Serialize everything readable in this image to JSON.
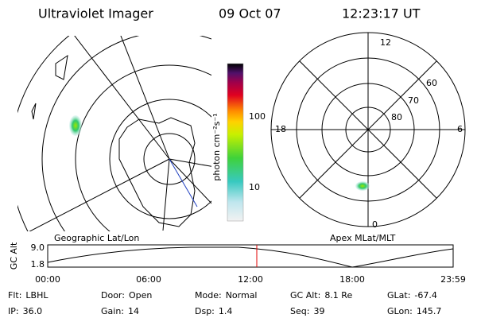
{
  "header": {
    "instrument": "Ultraviolet Imager",
    "date": "09 Oct 07",
    "time": "12:23:17 UT"
  },
  "polar_panel": {
    "mlt_labels": [
      "12",
      "18",
      "6",
      "0"
    ],
    "lat_labels": [
      "80",
      "70",
      "60"
    ]
  },
  "colorbar": {
    "unit_label": "photon cm⁻²s⁻¹",
    "ticks": [
      "100",
      "10"
    ]
  },
  "altitude_plot": {
    "left_label": "Geographic Lat/Lon",
    "right_label": "Apex MLat/MLT",
    "ylabel": "GC Alt",
    "yticks": [
      "9.0",
      "1.8"
    ],
    "xticks": [
      "00:00",
      "06:00",
      "12:00",
      "18:00",
      "23:59"
    ]
  },
  "info": [
    [
      {
        "label": "Flt:",
        "value": "LBHL"
      },
      {
        "label": "Door:",
        "value": "Open"
      },
      {
        "label": "Mode:",
        "value": "Normal"
      },
      {
        "label": "GC Alt:",
        "value": "8.1 Re"
      },
      {
        "label": "GLat:",
        "value": "-67.4"
      }
    ],
    [
      {
        "label": "IP:",
        "value": "36.0"
      },
      {
        "label": "Gain:",
        "value": "14"
      },
      {
        "label": "Dsp:",
        "value": "1.4"
      },
      {
        "label": "Seq:",
        "value": "39"
      },
      {
        "label": "GLon:",
        "value": "145.7"
      }
    ]
  ]
}
